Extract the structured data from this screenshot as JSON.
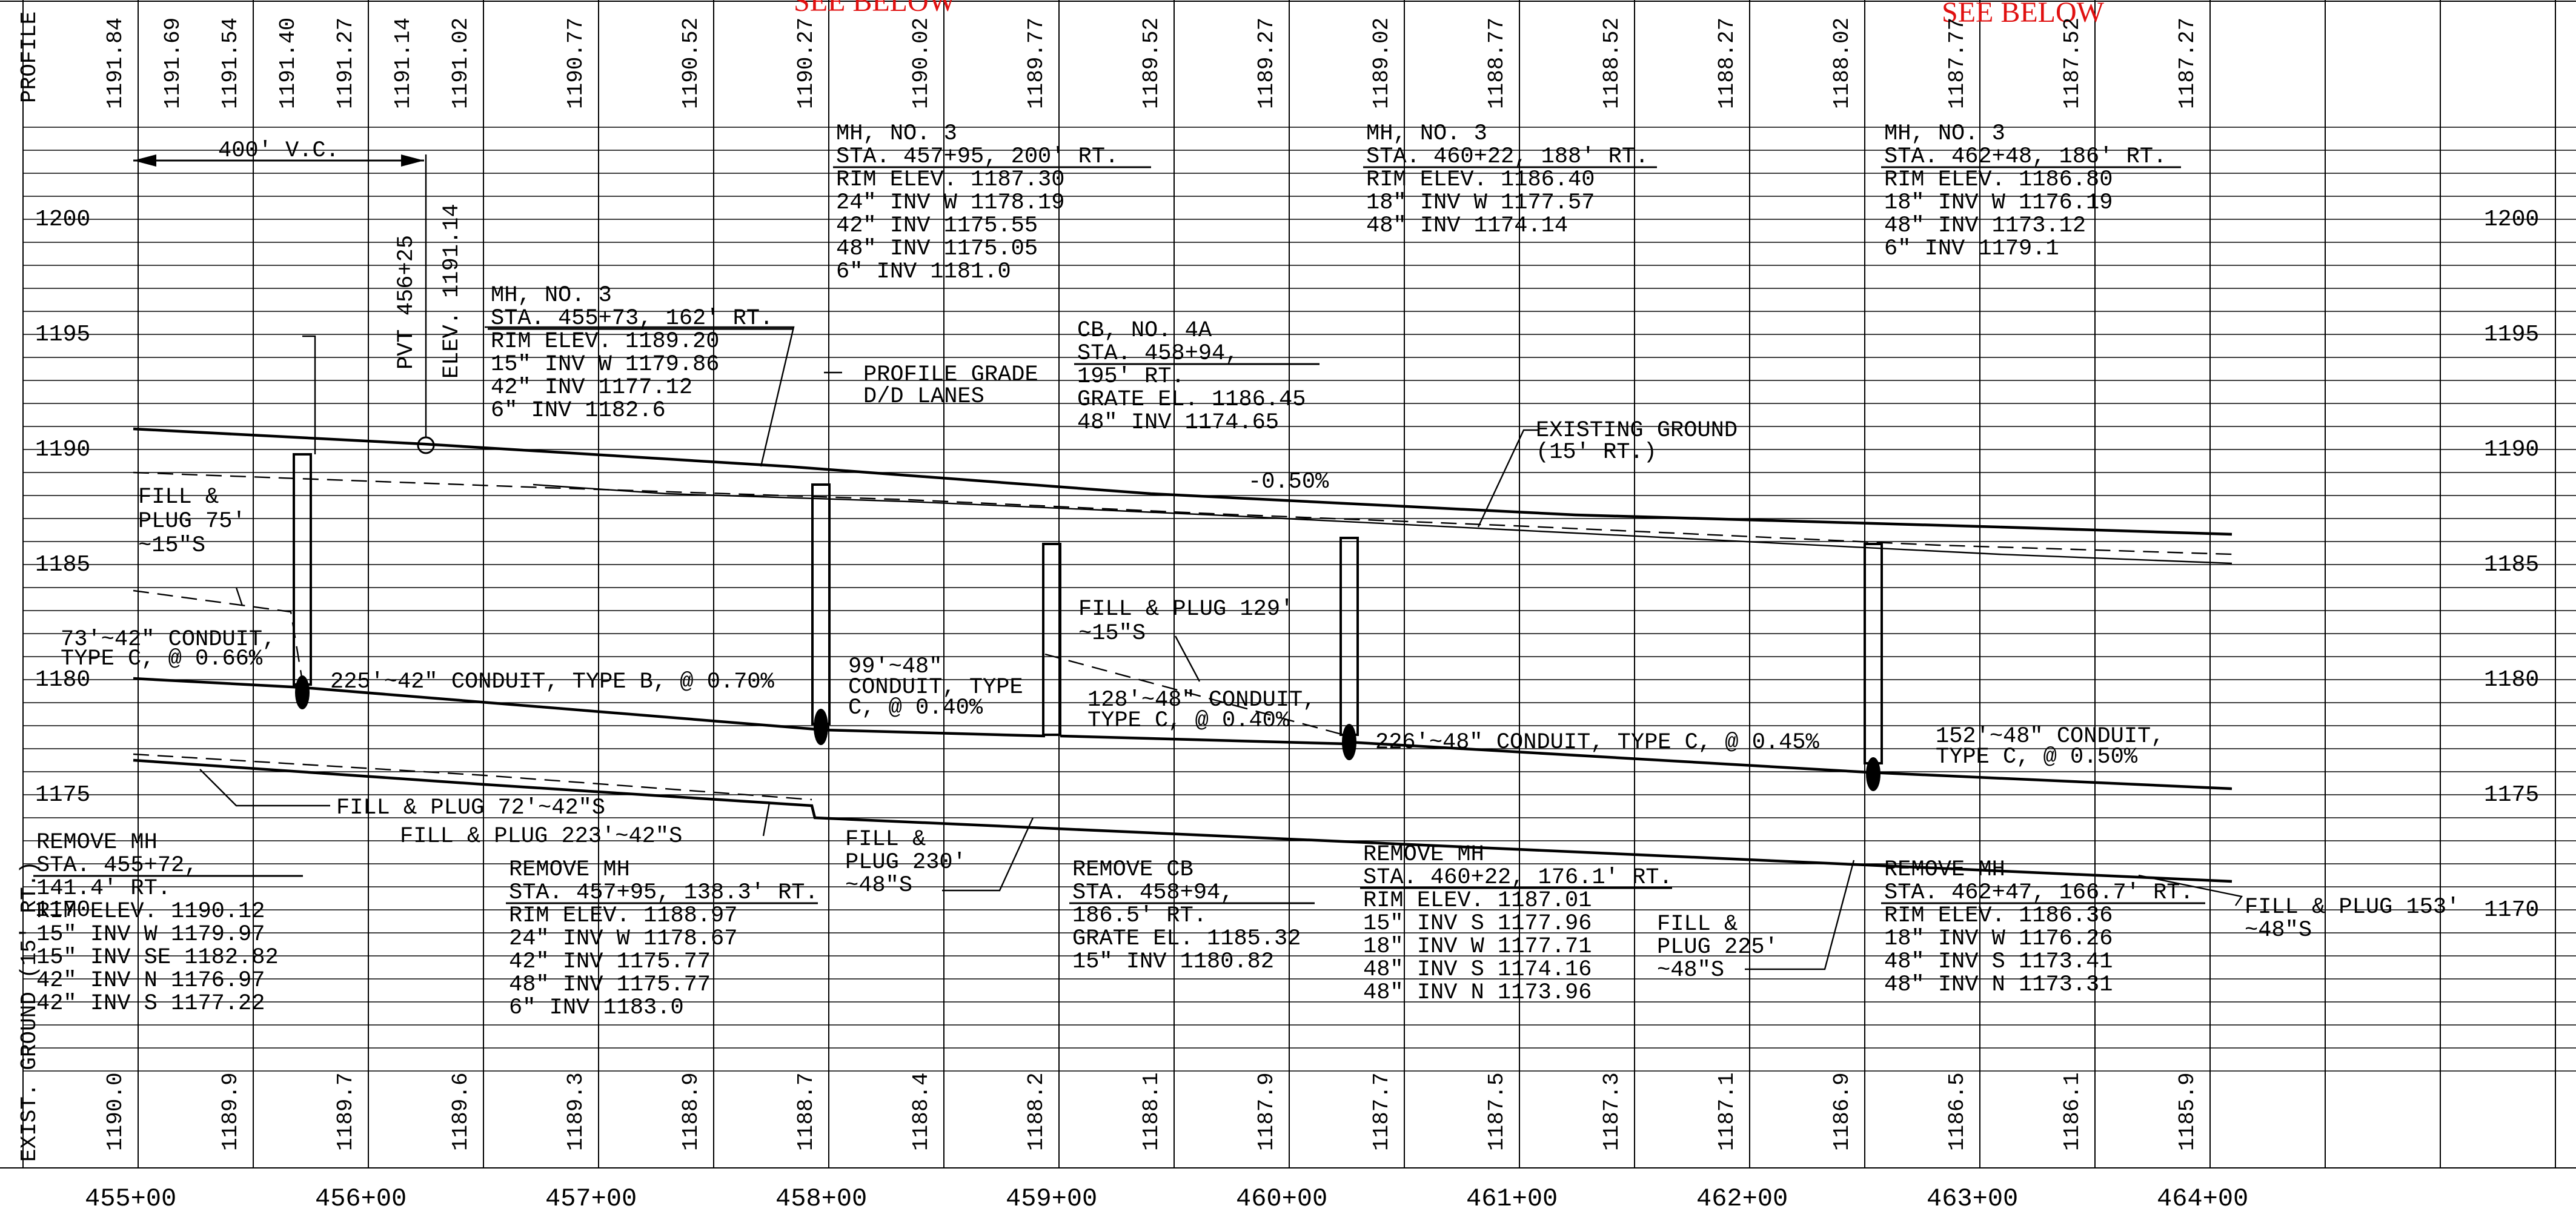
{
  "header": {
    "profile_grade_label": "PROFILE GRADE",
    "exist_ground_label": "EXIST. GROUND (15' RT.)",
    "see_below_1": "SEE BELOW",
    "see_below_2": "SEE BELOW"
  },
  "profile_grades": [
    "1191.84",
    "1191.69",
    "1191.54",
    "1191.40",
    "1191.27",
    "1191.14",
    "1191.02",
    "1190.77",
    "1190.52",
    "1190.27",
    "1190.02",
    "1189.77",
    "1189.52",
    "1189.27",
    "1189.02",
    "1188.77",
    "1188.52",
    "1188.27",
    "1188.02",
    "1187.77",
    "1187.52",
    "1187.27"
  ],
  "exist_ground": [
    "1190.0",
    "1189.9",
    "1189.7",
    "1189.6",
    "1189.3",
    "1188.9",
    "1188.7",
    "1188.4",
    "1188.2",
    "1188.1",
    "1187.9",
    "1187.7",
    "1187.5",
    "1187.3",
    "1187.1",
    "1186.9",
    "1186.5",
    "1186.1",
    "1185.9"
  ],
  "stations": [
    "455+00",
    "456+00",
    "457+00",
    "458+00",
    "459+00",
    "460+00",
    "461+00",
    "462+00",
    "463+00",
    "464+00"
  ],
  "elevations": [
    "1200",
    "1195",
    "1190",
    "1185",
    "1180",
    "1175",
    "1170"
  ],
  "vertical_curve": {
    "length": "400' V.C.",
    "pvt": "PVT 456+25",
    "elev": "ELEV. 1191.14"
  },
  "labels": {
    "profile_grade": [
      "PROFILE GRADE",
      "D/D LANES"
    ],
    "existing_ground": [
      "EXISTING GROUND",
      "(15' RT.)"
    ],
    "grade_pct": "-0.50%",
    "fill_plug_75": [
      "FILL &",
      "PLUG 75'",
      "~15\"S"
    ],
    "conduit_73": [
      "73'~42\" CONDUIT,",
      "TYPE C, @ 0.66%"
    ],
    "conduit_225": "225'~42\" CONDUIT, TYPE B, @ 0.70%",
    "conduit_99": [
      "99'~48\"",
      "CONDUIT, TYPE",
      "C, @ 0.40%"
    ],
    "fill_plug_129": [
      "FILL & PLUG 129'",
      "~15\"S"
    ],
    "conduit_128": [
      "128'~48\" CONDUIT,",
      "TYPE C, @ 0.40%"
    ],
    "conduit_226": "226'~48\" CONDUIT, TYPE C, @ 0.45%",
    "conduit_152": [
      "152'~48\" CONDUIT,",
      "TYPE C, @ 0.50%"
    ],
    "fill_plug_72": "FILL & PLUG 72'~42\"S",
    "fill_plug_223": "FILL & PLUG 223'~42\"S",
    "fill_plug_230": [
      "FILL &",
      "PLUG 230'",
      "~48\"S"
    ],
    "fill_plug_225": [
      "FILL &",
      "PLUG 225'",
      "~48\"S"
    ],
    "fill_plug_153": [
      "FILL & PLUG 153'",
      "~48\"S"
    ]
  },
  "structures_top": [
    {
      "lines": [
        "MH, NO. 3",
        "STA. 455+73, 162' RT.",
        "RIM ELEV.    1189.20",
        "15\" INV W    1179.86",
        "42\" INV      1177.12",
        "6\" INV       1182.6"
      ]
    },
    {
      "lines": [
        "MH, NO. 3",
        "STA. 457+95, 200' RT.",
        "RIM ELEV.   1187.30",
        "24\" INV W   1178.19",
        "42\" INV     1175.55",
        "48\" INV     1175.05",
        "6\" INV      1181.0"
      ]
    },
    {
      "lines": [
        "CB, NO. 4A",
        "STA. 458+94,",
        "195' RT.",
        "GRATE EL. 1186.45",
        "48\" INV   1174.65"
      ]
    },
    {
      "lines": [
        "MH, NO. 3",
        "STA. 460+22, 188' RT.",
        "RIM ELEV.   1186.40",
        "18\" INV W   1177.57",
        "48\" INV     1174.14"
      ]
    },
    {
      "lines": [
        "MH, NO. 3",
        "STA. 462+48, 186' RT.",
        "RIM ELEV.   1186.80",
        "18\" INV W   1176.19",
        "48\" INV     1173.12",
        "6\" INV      1179.1"
      ]
    }
  ],
  "structures_bottom": [
    {
      "lines": [
        "REMOVE MH",
        "STA. 455+72,",
        "141.4' RT.",
        "RIM ELEV.  1190.12",
        "15\" INV W  1179.97",
        "15\" INV SE 1182.82",
        "42\" INV N  1176.97",
        "42\" INV S  1177.22"
      ]
    },
    {
      "lines": [
        "REMOVE MH",
        "STA. 457+95, 138.3' RT.",
        "RIM ELEV.    1188.97",
        "24\" INV W    1178.67",
        "42\" INV      1175.77",
        "48\" INV      1175.77",
        "6\" INV       1183.0"
      ]
    },
    {
      "lines": [
        "REMOVE CB",
        "STA. 458+94,",
        "186.5' RT.",
        "GRATE EL.  1185.32",
        "15\" INV    1180.82"
      ]
    },
    {
      "lines": [
        "REMOVE MH",
        "STA. 460+22, 176.1' RT.",
        "RIM ELEV.   1187.01",
        "15\" INV S   1177.96",
        "18\" INV W   1177.71",
        "48\" INV S   1174.16",
        "48\" INV N   1173.96"
      ]
    },
    {
      "lines": [
        "REMOVE MH",
        "STA. 462+47, 166.7' RT.",
        "RIM ELEV.   1186.36",
        "18\" INV W   1176.26",
        "48\" INV S   1173.41",
        "48\" INV N   1173.31"
      ]
    }
  ]
}
